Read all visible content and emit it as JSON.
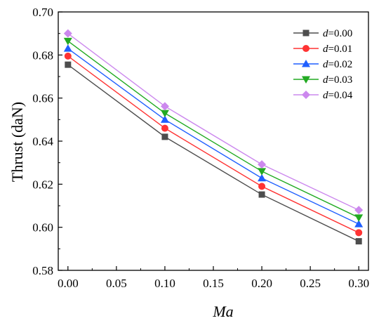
{
  "chart_data": {
    "type": "line",
    "xlabel": "Ma",
    "ylabel": "Thrust (daN)",
    "xlim": [
      -0.01,
      0.31
    ],
    "ylim": [
      0.58,
      0.7
    ],
    "x_ticks": [
      "0.00",
      "0.05",
      "0.10",
      "0.15",
      "0.20",
      "0.25",
      "0.30"
    ],
    "y_ticks": [
      "0.58",
      "0.60",
      "0.62",
      "0.64",
      "0.66",
      "0.68",
      "0.70"
    ],
    "x": [
      0.0,
      0.1,
      0.2,
      0.3
    ],
    "legend_position": "top-right",
    "grid": false,
    "series": [
      {
        "name": "d=0.00",
        "name_var": "d",
        "name_val": "=0.00",
        "color": "#4d4d4d",
        "marker": "square",
        "values": [
          0.6755,
          0.642,
          0.6152,
          0.5935
        ]
      },
      {
        "name": "d=0.01",
        "name_var": "d",
        "name_val": "=0.01",
        "color": "#ff3333",
        "marker": "circle",
        "values": [
          0.6795,
          0.646,
          0.619,
          0.5975
        ]
      },
      {
        "name": "d=0.02",
        "name_var": "d",
        "name_val": "=0.02",
        "color": "#1f5fff",
        "marker": "triangle-up",
        "values": [
          0.683,
          0.65,
          0.6228,
          0.6015
        ]
      },
      {
        "name": "d=0.03",
        "name_var": "d",
        "name_val": "=0.03",
        "color": "#22aa22",
        "marker": "triangle-down",
        "values": [
          0.6865,
          0.653,
          0.626,
          0.6045
        ]
      },
      {
        "name": "d=0.04",
        "name_var": "d",
        "name_val": "=0.04",
        "color": "#cc88ee",
        "marker": "diamond",
        "values": [
          0.69,
          0.6562,
          0.6292,
          0.608
        ]
      }
    ]
  }
}
